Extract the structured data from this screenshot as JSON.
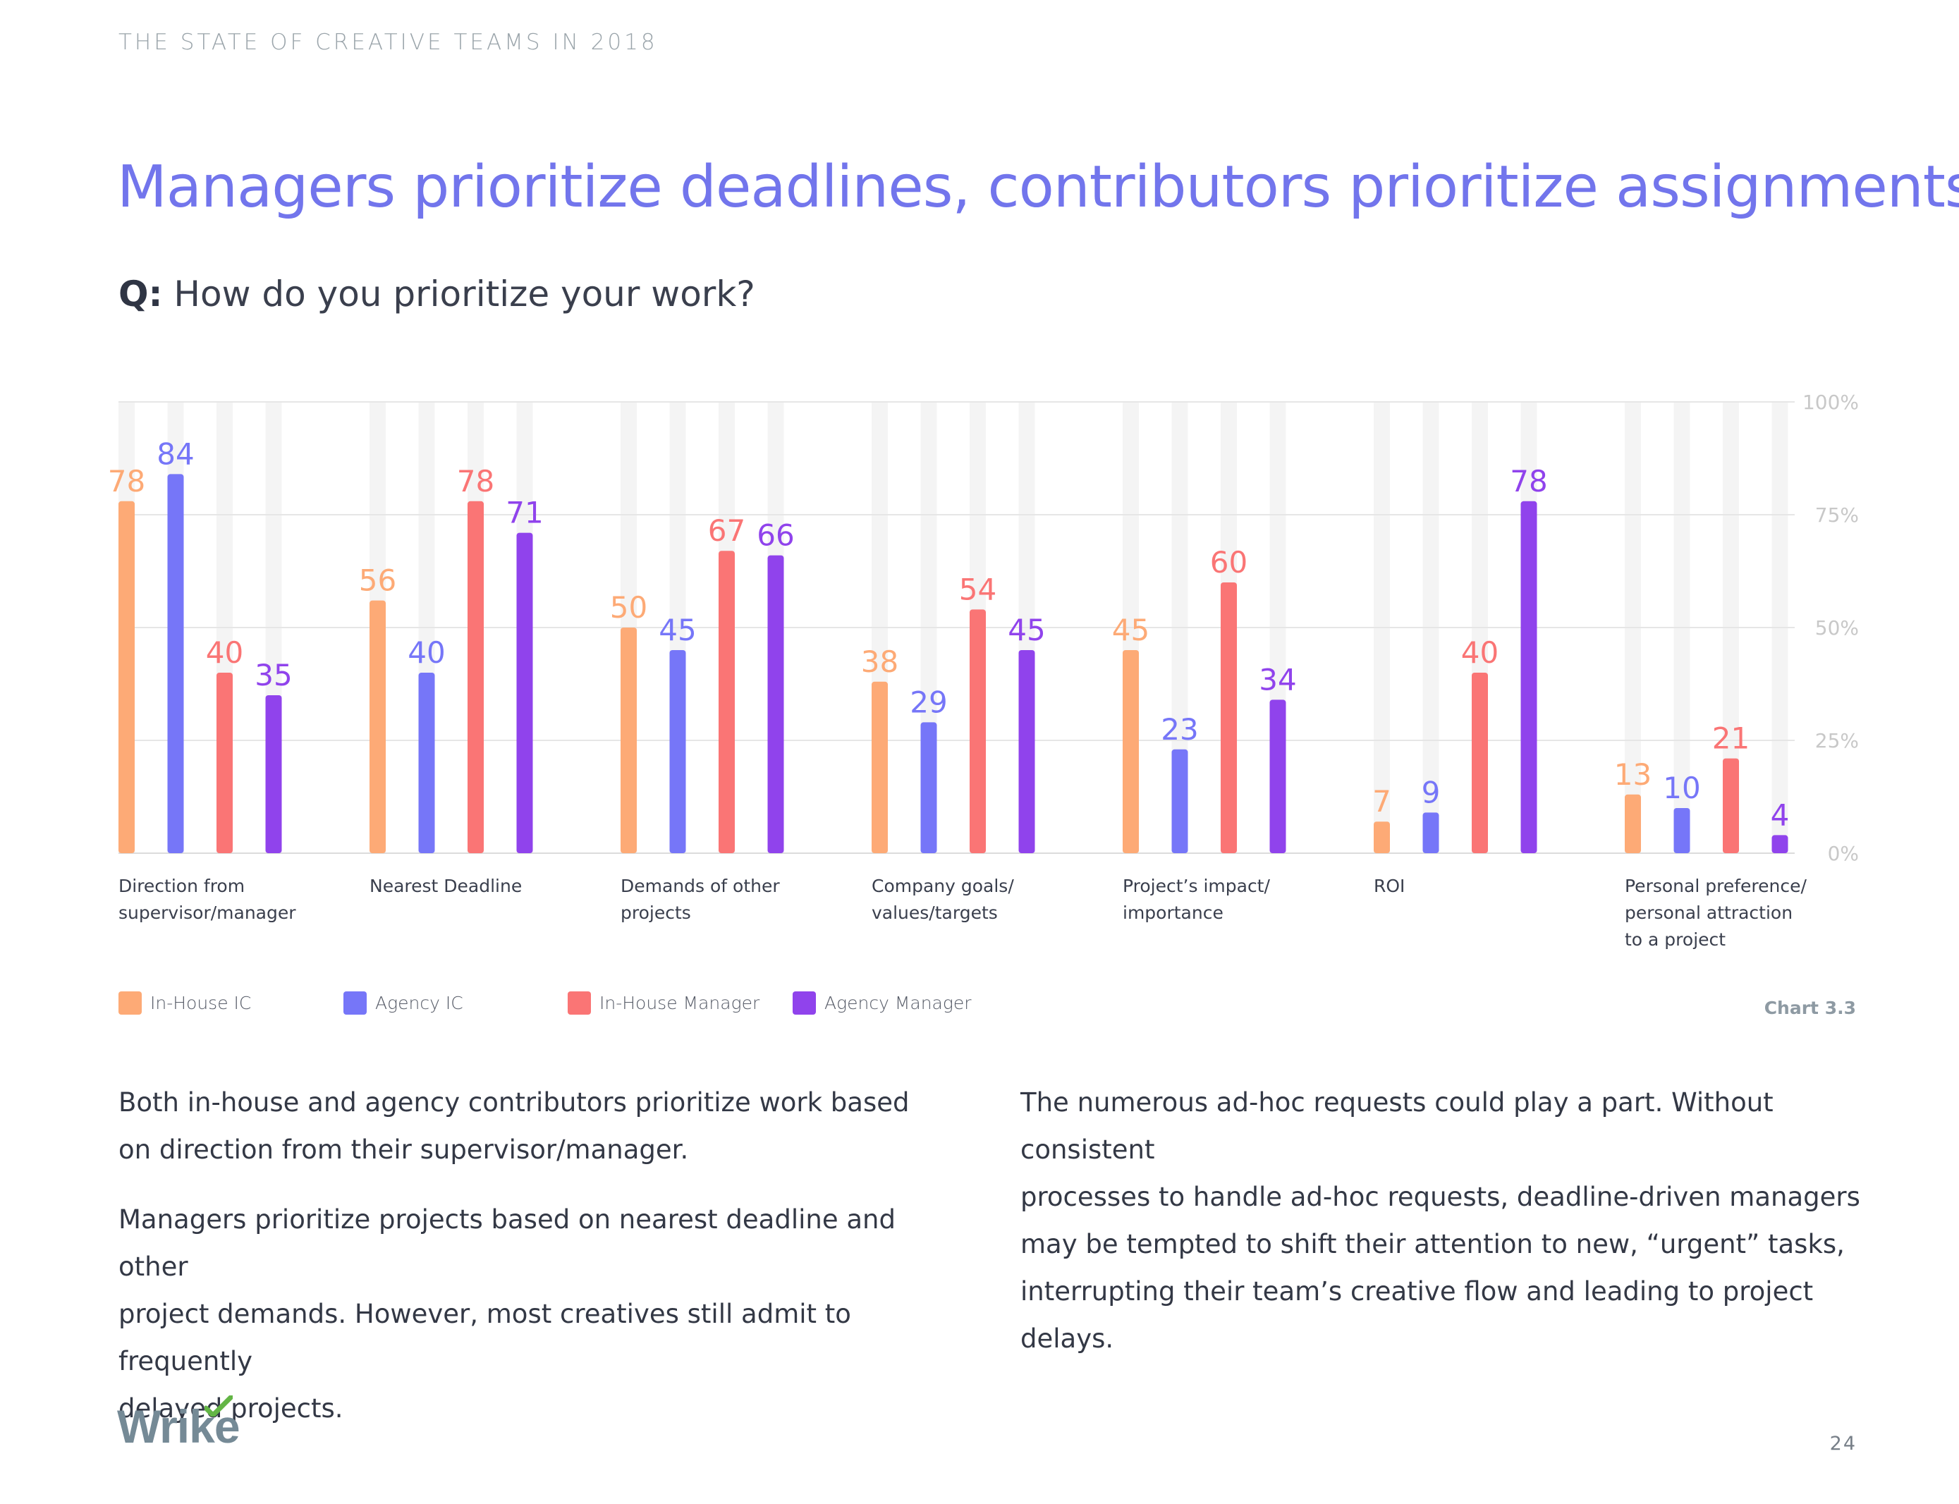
{
  "header": {
    "running_head": "THE STATE OF CREATIVE TEAMS IN 2018",
    "title": "Managers prioritize deadlines, contributors prioritize assignments",
    "question_label": "Q:",
    "question_text": "How do you prioritize your work?"
  },
  "chart_data": {
    "type": "bar",
    "title": "",
    "xlabel": "",
    "ylabel": "",
    "ylim": [
      0,
      100
    ],
    "y_ticks": [
      "0%",
      "25%",
      "50%",
      "75%",
      "100%"
    ],
    "y_axis_position": "right",
    "grid": true,
    "legend_position": "bottom-left",
    "categories": [
      [
        "Direction from",
        "supervisor/manager"
      ],
      [
        "Nearest Deadline"
      ],
      [
        "Demands of other",
        "projects"
      ],
      [
        "Company goals/",
        "values/targets"
      ],
      [
        "Project’s impact/",
        "importance"
      ],
      [
        "ROI"
      ],
      [
        "Personal preference/",
        "personal attraction",
        "to a project"
      ]
    ],
    "series": [
      {
        "name": "In-House IC",
        "color": "#fdaa76",
        "values": [
          78,
          56,
          50,
          38,
          45,
          7,
          13
        ]
      },
      {
        "name": "Agency IC",
        "color": "#7676f8",
        "values": [
          84,
          40,
          45,
          29,
          23,
          9,
          10
        ]
      },
      {
        "name": "In-House Manager",
        "color": "#fa7575",
        "values": [
          40,
          78,
          67,
          54,
          60,
          40,
          21
        ]
      },
      {
        "name": "Agency Manager",
        "color": "#9043ec",
        "values": [
          35,
          71,
          66,
          45,
          34,
          78,
          4
        ]
      }
    ],
    "chart_number": "Chart 3.3"
  },
  "body": {
    "left_paragraphs": [
      [
        "Both in-house and agency contributors prioritize work based",
        "on direction from their supervisor/manager."
      ],
      [
        "Managers prioritize projects based on nearest deadline and other",
        "project demands. However, most creatives still admit to frequently",
        "delayed projects."
      ]
    ],
    "right_paragraphs": [
      [
        "The numerous ad-hoc requests could play a part. Without consistent",
        "processes to handle ad-hoc requests, deadline-driven managers",
        "may be tempted to shift their attention to new, “urgent” tasks,",
        "interrupting their team’s creative flow  and leading to project delays."
      ]
    ]
  },
  "footer": {
    "logo_text": "Wrike",
    "page_number": "24"
  },
  "colors": {
    "title": "#7275ec",
    "grid": "#e6e6e6",
    "track": "#f4f4f4",
    "tick_label": "#c8c8c8"
  }
}
